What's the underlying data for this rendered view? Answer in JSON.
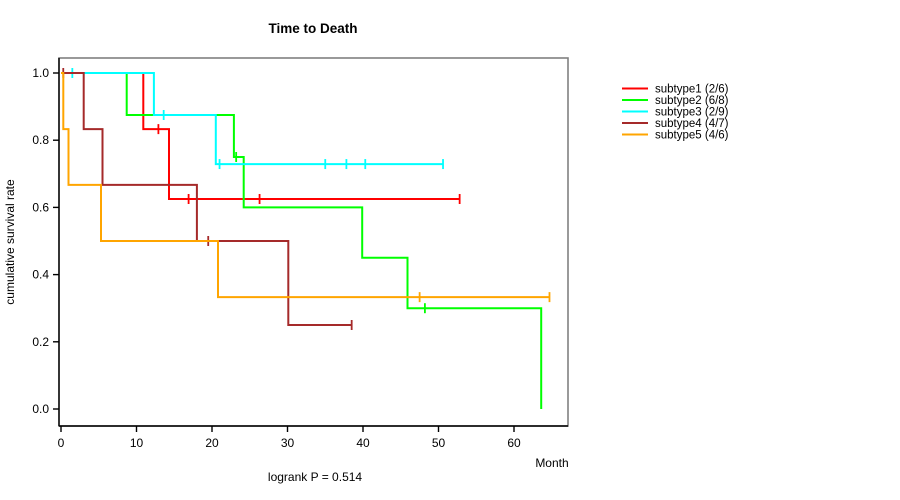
{
  "chart_data": {
    "type": "line",
    "variant": "kaplan-meier-step",
    "title": "Time to Death",
    "xlabel": "Month",
    "ylabel": "cumulative survival rate",
    "annotation": "logrank P = 0.514",
    "xlim": [
      0,
      67
    ],
    "ylim": [
      0,
      1
    ],
    "xticks": [
      0,
      10,
      20,
      30,
      40,
      50,
      60
    ],
    "yticks": [
      "1.0",
      "0.8",
      "0.6",
      "0.4",
      "0.2",
      "0.0"
    ],
    "grid": false,
    "legend_position": "right-outside",
    "box_color": "#808080",
    "axis_color": "#000000",
    "series": [
      {
        "name": "subtype1 (2/6)",
        "color": "#FF0000",
        "steps": [
          [
            0,
            1.0
          ],
          [
            10.9,
            1.0
          ],
          [
            10.9,
            0.833
          ],
          [
            14.3,
            0.833
          ],
          [
            14.3,
            0.625
          ],
          [
            52.8,
            0.625
          ]
        ],
        "censors": [
          [
            12.9,
            0.833
          ],
          [
            16.9,
            0.625
          ],
          [
            26.3,
            0.625
          ],
          [
            52.8,
            0.625
          ]
        ]
      },
      {
        "name": "subtype2 (6/8)",
        "color": "#00FF00",
        "steps": [
          [
            0,
            1.0
          ],
          [
            8.7,
            1.0
          ],
          [
            8.7,
            0.875
          ],
          [
            22.9,
            0.875
          ],
          [
            22.9,
            0.75
          ],
          [
            24.2,
            0.75
          ],
          [
            24.2,
            0.6
          ],
          [
            39.9,
            0.6
          ],
          [
            39.9,
            0.45
          ],
          [
            45.9,
            0.45
          ],
          [
            45.9,
            0.3
          ],
          [
            63.6,
            0.3
          ],
          [
            63.6,
            0.0
          ]
        ],
        "censors": [
          [
            23.2,
            0.75
          ],
          [
            48.2,
            0.3
          ]
        ]
      },
      {
        "name": "subtype3 (2/9)",
        "color": "#00FFFF",
        "steps": [
          [
            0,
            1.0
          ],
          [
            12.3,
            1.0
          ],
          [
            12.3,
            0.875
          ],
          [
            20.5,
            0.875
          ],
          [
            20.5,
            0.729
          ],
          [
            50.6,
            0.729
          ]
        ],
        "censors": [
          [
            1.5,
            1.0
          ],
          [
            13.6,
            0.875
          ],
          [
            21.0,
            0.729
          ],
          [
            35.0,
            0.729
          ],
          [
            37.8,
            0.729
          ],
          [
            40.3,
            0.729
          ],
          [
            50.6,
            0.729
          ]
        ]
      },
      {
        "name": "subtype4 (4/7)",
        "color": "#A52A2A",
        "steps": [
          [
            0,
            1.0
          ],
          [
            3.0,
            1.0
          ],
          [
            3.0,
            0.833
          ],
          [
            5.5,
            0.833
          ],
          [
            5.5,
            0.667
          ],
          [
            18.0,
            0.667
          ],
          [
            18.0,
            0.5
          ],
          [
            30.1,
            0.5
          ],
          [
            30.1,
            0.25
          ],
          [
            38.5,
            0.25
          ]
        ],
        "censors": [
          [
            0.3,
            1.0
          ],
          [
            19.5,
            0.5
          ],
          [
            38.5,
            0.25
          ]
        ]
      },
      {
        "name": "subtype5 (4/6)",
        "color": "#FFA500",
        "steps": [
          [
            0,
            1.0
          ],
          [
            0.3,
            1.0
          ],
          [
            0.3,
            0.833
          ],
          [
            1.0,
            0.833
          ],
          [
            1.0,
            0.667
          ],
          [
            5.3,
            0.667
          ],
          [
            5.3,
            0.5
          ],
          [
            20.8,
            0.5
          ],
          [
            20.8,
            0.333
          ],
          [
            64.7,
            0.333
          ]
        ],
        "censors": [
          [
            47.5,
            0.333
          ],
          [
            64.7,
            0.333
          ]
        ]
      }
    ]
  }
}
